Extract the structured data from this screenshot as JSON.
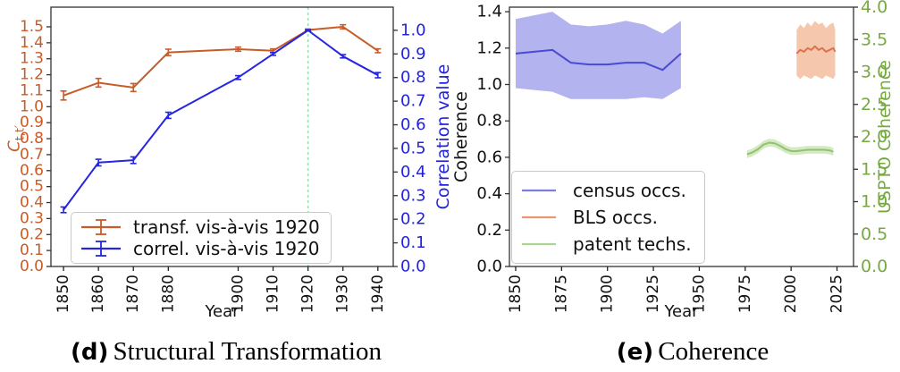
{
  "captions": {
    "d_tag": "(d)",
    "d_text": "Structural Transformation",
    "e_tag": "(e)",
    "e_text": "Coherence"
  },
  "chart_data": [
    {
      "id": "d",
      "type": "line",
      "title": "Structural Transformation",
      "xlabel": "Year",
      "ylabel_left_main": "C",
      "ylabel_left_sub": "t,t′",
      "ylabel_right": "Correlation value",
      "color_left": "#c75c28",
      "color_right": "#2323dd",
      "xlim": [
        1846.4,
        1944.4
      ],
      "ylim_left": [
        0,
        1.623
      ],
      "ylim_right": [
        0,
        1.098
      ],
      "x_ticks": [
        "1850",
        "1860",
        "1870",
        "1880",
        "1900",
        "1910",
        "1920",
        "1930",
        "1940"
      ],
      "y_ticks_left": [
        "0.0",
        "0.1",
        "0.2",
        "0.3",
        "0.4",
        "0.5",
        "0.6",
        "0.7",
        "0.8",
        "0.9",
        "1.0",
        "1.1",
        "1.2",
        "1.3",
        "1.4",
        "1.5"
      ],
      "y_ticks_right": [
        "0.0",
        "0.1",
        "0.2",
        "0.3",
        "0.4",
        "0.5",
        "0.6",
        "0.7",
        "0.8",
        "0.9",
        "1.0"
      ],
      "vline": {
        "x": 1920,
        "color": "#9edcb2",
        "style": "dashed"
      },
      "legend_position": "lower left",
      "series": [
        {
          "name": "transf. vis-à-vis 1920",
          "axis": "left",
          "color": "#c75c28",
          "swatch": "#c75c28",
          "x": [
            1850,
            1860,
            1870,
            1880,
            1900,
            1910,
            1920,
            1930,
            1940
          ],
          "y": [
            1.07,
            1.15,
            1.12,
            1.34,
            1.36,
            1.35,
            1.48,
            1.5,
            1.35
          ],
          "yerr": [
            0.028,
            0.027,
            0.025,
            0.02,
            0.013,
            0.012,
            0.006,
            0.013,
            0.012
          ]
        },
        {
          "name": "correl. vis-à-vis 1920",
          "axis": "right",
          "color": "#2525e2",
          "swatch": "#2525e2",
          "x": [
            1850,
            1860,
            1870,
            1880,
            1900,
            1910,
            1920,
            1930,
            1940
          ],
          "y": [
            0.24,
            0.44,
            0.45,
            0.64,
            0.8,
            0.9,
            1.0,
            0.89,
            0.81
          ],
          "yerr": [
            0.012,
            0.014,
            0.014,
            0.013,
            0.008,
            0.006,
            0.003,
            0.007,
            0.011
          ]
        }
      ]
    },
    {
      "id": "e",
      "type": "line-band",
      "title": "Coherence",
      "xlabel": "Year",
      "ylabel_left": "Coherence",
      "ylabel_right": "USPTO Coherence",
      "color_left": "#111111",
      "color_right": "#76a93f",
      "xlim": [
        1846.6,
        2034.0
      ],
      "ylim_left": [
        0,
        1.425
      ],
      "ylim_right": [
        0,
        4.0
      ],
      "x_ticks": [
        "1850",
        "1875",
        "1900",
        "1925",
        "1950",
        "1975",
        "2000",
        "2025"
      ],
      "y_ticks_left": [
        "0.0",
        "0.2",
        "0.4",
        "0.6",
        "0.8",
        "1.0",
        "1.2",
        "1.4"
      ],
      "y_ticks_right": [
        "0.0",
        "0.5",
        "1.0",
        "1.5",
        "2.0",
        "2.5",
        "3.0",
        "3.5",
        "4.0"
      ],
      "legend_position": "lower left",
      "series": [
        {
          "name": "census occs.",
          "axis": "left",
          "color": "#4a4ad2",
          "band_color": "#b3b3ef",
          "swatch": "#7d7de0",
          "x": [
            1850,
            1860,
            1870,
            1880,
            1890,
            1900,
            1910,
            1920,
            1930,
            1940
          ],
          "y": [
            1.17,
            1.18,
            1.19,
            1.12,
            1.11,
            1.11,
            1.12,
            1.12,
            1.08,
            1.17
          ],
          "y_lo": [
            0.98,
            0.97,
            0.96,
            0.92,
            0.92,
            0.92,
            0.92,
            0.93,
            0.92,
            0.98
          ],
          "y_hi": [
            1.36,
            1.38,
            1.4,
            1.33,
            1.32,
            1.33,
            1.35,
            1.33,
            1.28,
            1.35
          ]
        },
        {
          "name": "BLS occs.",
          "axis": "left",
          "color": "#e0714b",
          "band_color": "#f5c7ad",
          "swatch": "#eb9673",
          "x": [
            2003,
            2005,
            2007,
            2009,
            2011,
            2013,
            2015,
            2017,
            2019,
            2021,
            2023,
            2024
          ],
          "y": [
            1.17,
            1.19,
            1.18,
            1.2,
            1.19,
            1.21,
            1.19,
            1.2,
            1.18,
            1.19,
            1.2,
            1.18
          ],
          "y_lo": [
            1.05,
            1.03,
            1.05,
            1.04,
            1.03,
            1.05,
            1.04,
            1.03,
            1.05,
            1.04,
            1.03,
            1.05
          ],
          "y_hi": [
            1.3,
            1.33,
            1.31,
            1.34,
            1.32,
            1.35,
            1.33,
            1.34,
            1.31,
            1.33,
            1.34,
            1.3
          ]
        },
        {
          "name": "patent techs.",
          "axis": "right",
          "color": "#90c271",
          "band_color": "#d5e9c3",
          "swatch": "#aed492",
          "x": [
            1976,
            1979,
            1982,
            1985,
            1988,
            1991,
            1994,
            1997,
            2000,
            2003,
            2006,
            2009,
            2012,
            2015,
            2018,
            2021,
            2023
          ],
          "y": [
            1.73,
            1.76,
            1.81,
            1.88,
            1.91,
            1.9,
            1.86,
            1.81,
            1.78,
            1.78,
            1.79,
            1.8,
            1.8,
            1.8,
            1.8,
            1.79,
            1.77
          ],
          "y_lo": [
            1.67,
            1.7,
            1.75,
            1.82,
            1.85,
            1.84,
            1.8,
            1.75,
            1.72,
            1.72,
            1.73,
            1.74,
            1.74,
            1.74,
            1.74,
            1.73,
            1.71
          ],
          "y_hi": [
            1.79,
            1.82,
            1.87,
            1.94,
            1.97,
            1.96,
            1.92,
            1.87,
            1.84,
            1.84,
            1.85,
            1.86,
            1.86,
            1.86,
            1.86,
            1.85,
            1.83
          ]
        }
      ]
    }
  ]
}
